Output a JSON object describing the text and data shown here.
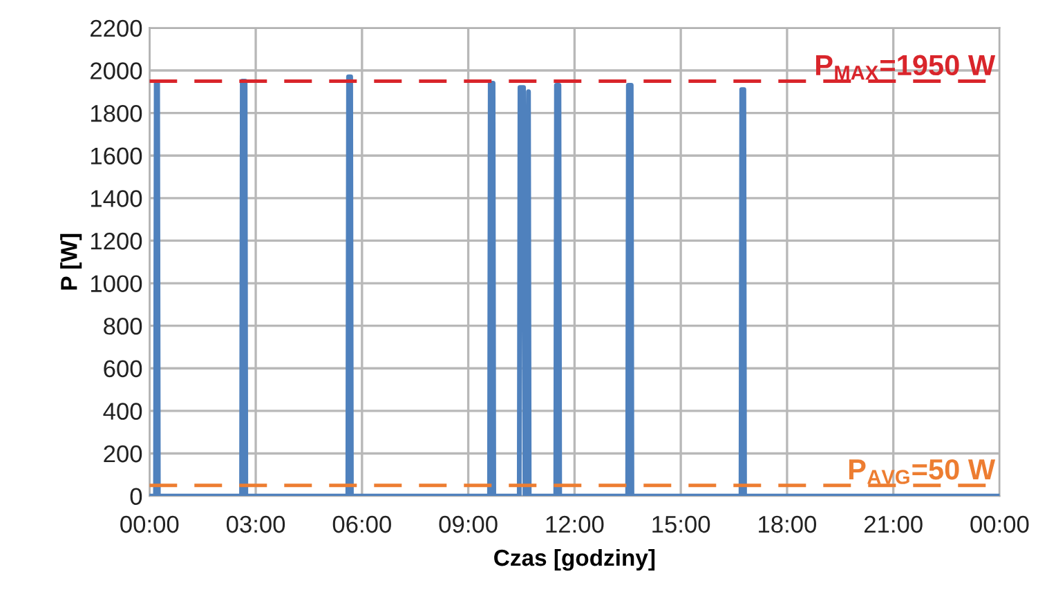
{
  "chart_data": {
    "type": "line",
    "xlabel": "Czas [godziny]",
    "ylabel": "P [W]",
    "series": [
      {
        "color": "#4f81bd",
        "x": [
          0,
          0.17,
          0.19,
          0.23,
          0.25,
          2.6,
          2.62,
          2.7,
          2.72,
          5.6,
          5.62,
          5.68,
          5.7,
          9.6,
          9.62,
          9.7,
          9.72,
          10.44,
          10.46,
          10.56,
          10.6,
          10.62,
          10.7,
          10.72,
          11.47,
          11.49,
          11.56,
          11.58,
          13.5,
          13.52,
          13.6,
          13.62,
          16.7,
          16.72,
          16.78,
          16.8,
          24
        ],
        "values": [
          0,
          0,
          1940,
          1940,
          0,
          0,
          1950,
          1950,
          0,
          0,
          1970,
          1970,
          0,
          0,
          1940,
          1940,
          0,
          0,
          1920,
          1920,
          0,
          0,
          1900,
          0,
          0,
          1930,
          1930,
          0,
          0,
          1930,
          1930,
          0,
          0,
          1910,
          1910,
          0,
          0
        ]
      }
    ],
    "xlim": [
      0,
      24
    ],
    "xticks": [
      {
        "value": 0,
        "label": "00:00"
      },
      {
        "value": 3,
        "label": "03:00"
      },
      {
        "value": 6,
        "label": "06:00"
      },
      {
        "value": 9,
        "label": "09:00"
      },
      {
        "value": 12,
        "label": "12:00"
      },
      {
        "value": 15,
        "label": "15:00"
      },
      {
        "value": 18,
        "label": "18:00"
      },
      {
        "value": 21,
        "label": "21:00"
      },
      {
        "value": 24,
        "label": "00:00"
      }
    ],
    "ylim": [
      0,
      2200
    ],
    "yticks": [
      0,
      200,
      400,
      600,
      800,
      1000,
      1200,
      1400,
      1600,
      1800,
      2000,
      2200
    ],
    "grid": true,
    "marker": "none",
    "line_style": "solid",
    "ref_lines": [
      {
        "axis": "y",
        "value": 1950,
        "label": "P$_{MAX}$=1950 W",
        "color": "#d9252b",
        "line_style": "dashed"
      },
      {
        "axis": "y",
        "value": 50,
        "label": "P$_{AVG}$=50 W",
        "color": "#ed7d31",
        "line_style": "dashed"
      }
    ]
  }
}
